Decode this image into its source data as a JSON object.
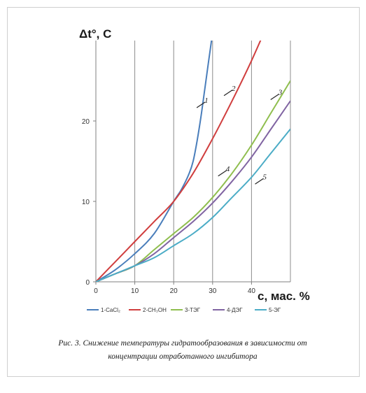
{
  "caption": {
    "line1": "Рис. 3. Снижение температуры гидратообразования в зависимости от",
    "line2": "концентрации отработанного ингибитора"
  },
  "chart_data": {
    "type": "line",
    "title": "",
    "xlabel": "с, мас. %",
    "ylabel": "Δt°, С",
    "xlim": [
      0,
      50
    ],
    "ylim": [
      0,
      30
    ],
    "xticks": [
      0,
      10,
      20,
      30,
      40
    ],
    "yticks": [
      0,
      10,
      20
    ],
    "grid": "vertical",
    "legend_position": "bottom",
    "series": [
      {
        "name": "1-CaCl₂",
        "label": "1",
        "color": "#4a7ebb",
        "x": [
          0,
          5,
          10,
          15,
          20,
          22,
          24,
          25,
          26,
          27,
          28,
          29,
          30,
          31
        ],
        "y": [
          0,
          1.5,
          3.5,
          6,
          10,
          11.5,
          13.5,
          15,
          17.5,
          20.5,
          24,
          27.5,
          31,
          35
        ]
      },
      {
        "name": "2-CH₃OH",
        "label": "2",
        "color": "#d03e3e",
        "x": [
          0,
          5,
          10,
          15,
          20,
          25,
          30,
          35,
          40,
          45
        ],
        "y": [
          0,
          2.5,
          5,
          7.5,
          10,
          13.5,
          17.8,
          22.5,
          27.5,
          33
        ]
      },
      {
        "name": "3-ТЭГ",
        "label": "3",
        "color": "#8fbe4e",
        "x": [
          0,
          5,
          10,
          15,
          20,
          25,
          30,
          35,
          40,
          45,
          50
        ],
        "y": [
          0,
          1,
          2,
          4,
          6,
          8,
          10.5,
          13.5,
          17,
          21,
          25
        ]
      },
      {
        "name": "4-ДЭГ",
        "label": "4",
        "color": "#8064a2",
        "x": [
          0,
          5,
          10,
          15,
          20,
          25,
          30,
          35,
          40,
          45,
          50
        ],
        "y": [
          0,
          1,
          2,
          3.5,
          5.5,
          7.5,
          9.8,
          12.5,
          15.5,
          19,
          22.5
        ]
      },
      {
        "name": "5-ЭГ",
        "label": "5",
        "color": "#4bacc6",
        "x": [
          0,
          5,
          10,
          15,
          20,
          25,
          30,
          35,
          40,
          45,
          50
        ],
        "y": [
          0,
          1,
          2,
          3,
          4.5,
          6,
          8,
          10.5,
          13,
          16,
          19
        ]
      }
    ],
    "curve_labels": [
      {
        "text": "1",
        "x": 27,
        "y": 22
      },
      {
        "text": "2",
        "x": 34,
        "y": 23.5
      },
      {
        "text": "3",
        "x": 46,
        "y": 23
      },
      {
        "text": "4",
        "x": 32.5,
        "y": 13.5
      },
      {
        "text": "5",
        "x": 42,
        "y": 12.5
      }
    ]
  }
}
